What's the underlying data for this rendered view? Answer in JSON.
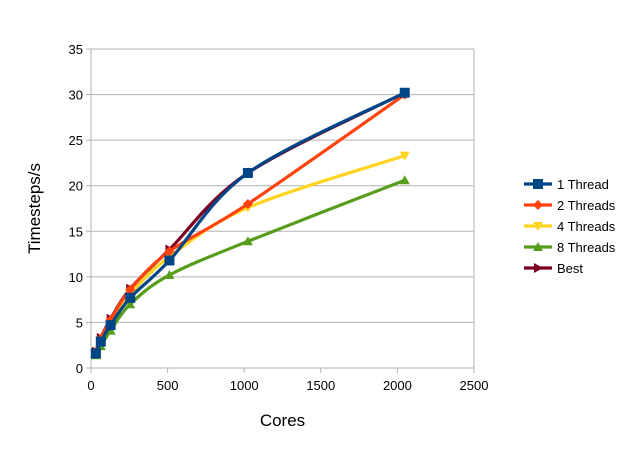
{
  "chart_data": {
    "type": "line",
    "xlabel": "Cores",
    "ylabel": "Timesteps/s",
    "xlim": [
      0,
      2500
    ],
    "ylim": [
      0,
      35
    ],
    "xticks": [
      0,
      500,
      1000,
      1500,
      2000,
      2500
    ],
    "yticks": [
      0,
      5,
      10,
      15,
      20,
      25,
      30,
      35
    ],
    "grid": "horizontal",
    "legend_position": "right",
    "series": [
      {
        "name": "1 Thread",
        "color": "#004586",
        "marker": "square",
        "x": [
          32,
          64,
          128,
          256,
          512,
          1024,
          2048
        ],
        "y": [
          1.6,
          2.9,
          4.7,
          7.7,
          11.8,
          21.4,
          30.2
        ]
      },
      {
        "name": "2 Threads",
        "color": "#ff420e",
        "marker": "diamond",
        "x": [
          32,
          64,
          128,
          256,
          512,
          1024,
          2048
        ],
        "y": [
          1.8,
          3.2,
          5.3,
          8.6,
          12.8,
          18.0,
          30.0
        ]
      },
      {
        "name": "4 Threads",
        "color": "#ffd320",
        "marker": "triangle-down",
        "x": [
          32,
          64,
          128,
          256,
          512,
          1024,
          2048
        ],
        "y": [
          1.7,
          3.0,
          5.0,
          8.1,
          12.2,
          17.6,
          23.3
        ]
      },
      {
        "name": "8 Threads",
        "color": "#579d1c",
        "marker": "triangle-up",
        "x": [
          32,
          64,
          128,
          256,
          512,
          1024,
          2048
        ],
        "y": [
          1.4,
          2.4,
          4.1,
          7.0,
          10.2,
          13.9,
          20.6
        ]
      },
      {
        "name": "Best",
        "color": "#7e0021",
        "marker": "triangle-right",
        "x": [
          32,
          64,
          128,
          256,
          512,
          1024,
          2048
        ],
        "y": [
          1.8,
          3.3,
          5.4,
          8.7,
          13.0,
          21.4,
          30.2
        ]
      }
    ]
  }
}
